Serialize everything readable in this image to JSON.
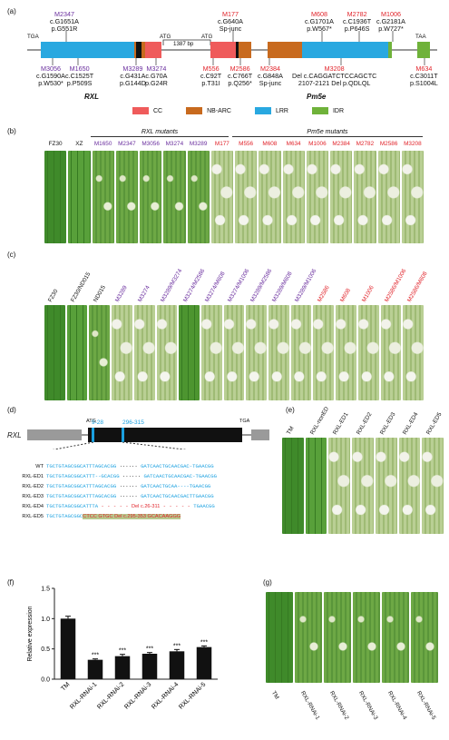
{
  "panels": {
    "a": "(a)",
    "b": "(b)",
    "c": "(c)",
    "d": "(d)",
    "e": "(e)",
    "f": "(f)",
    "g": "(g)"
  },
  "panel_a": {
    "gene_left": "RXL",
    "gene_right": "Pm5e",
    "tga_left": "TGA",
    "atg_mid1": "ATG",
    "gap": "1387 bp",
    "atg_mid2": "ATG",
    "taa_right": "TAA",
    "top_mutations": [
      {
        "id": "M2347",
        "c": "c.G1651A",
        "p": "p.G551R",
        "color": "purple"
      },
      {
        "id": "M177",
        "c": "c.G640A",
        "p": "Sp-junc",
        "color": "red"
      },
      {
        "id": "M608",
        "c": "c.G1701A",
        "p": "p.W567*",
        "color": "red"
      },
      {
        "id": "M2782",
        "c": "c.C1936T",
        "p": "p.P646S",
        "color": "red"
      },
      {
        "id": "M1006",
        "c": "c.G2181A",
        "p": "p.W727*",
        "color": "red"
      }
    ],
    "bottom_mutations": [
      {
        "id": "M3056",
        "c": "c.G1590A",
        "p": "p.W530*",
        "color": "purple"
      },
      {
        "id": "M1650",
        "c": "c.C1525T",
        "p": "p.P509S",
        "color": "purple"
      },
      {
        "id": "M3289",
        "c": "c.G431A",
        "p": "p.G144D",
        "color": "purple"
      },
      {
        "id": "M3274",
        "c": "c.G70A",
        "p": "p.G24R",
        "color": "purple"
      },
      {
        "id": "M556",
        "c": "c.C92T",
        "p": "p.T31I",
        "color": "red"
      },
      {
        "id": "M2586",
        "c": "c.C766T",
        "p": "p.Q256*",
        "color": "red"
      },
      {
        "id": "M2384",
        "c": "c.G848A",
        "p": "Sp-junc",
        "color": "red"
      },
      {
        "id": "M3208",
        "c": "Del c.CAGGATCTCCAGCTC",
        "p": "2107-2121    Del p.QDLQL",
        "color": "red"
      },
      {
        "id": "M634",
        "c": "c.C3011T",
        "p": "p.S1004L",
        "color": "red"
      }
    ],
    "legend": [
      {
        "label": "CC",
        "color": "#ef5b5b"
      },
      {
        "label": "NB-ARC",
        "color": "#c86a1e"
      },
      {
        "label": "LRR",
        "color": "#29a8e0"
      },
      {
        "label": "IDR",
        "color": "#6fb23a"
      }
    ]
  },
  "panel_b": {
    "rxl_header": "RXL mutants",
    "pm5e_header": "Pm5e mutants",
    "labels": [
      {
        "t": "FZ30",
        "c": "dark"
      },
      {
        "t": "XZ",
        "c": "dark"
      },
      {
        "t": "M1650",
        "c": "purple"
      },
      {
        "t": "M2347",
        "c": "purple"
      },
      {
        "t": "M3056",
        "c": "purple"
      },
      {
        "t": "M3274",
        "c": "purple"
      },
      {
        "t": "M3289",
        "c": "purple"
      },
      {
        "t": "M177",
        "c": "red"
      },
      {
        "t": "M556",
        "c": "red"
      },
      {
        "t": "M608",
        "c": "red"
      },
      {
        "t": "M634",
        "c": "red"
      },
      {
        "t": "M1006",
        "c": "red"
      },
      {
        "t": "M2384",
        "c": "red"
      },
      {
        "t": "M2782",
        "c": "red"
      },
      {
        "t": "M2586",
        "c": "red"
      },
      {
        "t": "M3208",
        "c": "red"
      }
    ]
  },
  "panel_c": {
    "labels": [
      {
        "t": "FZ30",
        "c": "dark"
      },
      {
        "t": "FZ30/ND015",
        "c": "dark"
      },
      {
        "t": "ND015",
        "c": "dark"
      },
      {
        "t": "M3289",
        "c": "purple"
      },
      {
        "t": "M3274",
        "c": "purple"
      },
      {
        "t": "M3289/M3274",
        "c": "purple"
      },
      {
        "t": "M3274/M2586",
        "c": "purple"
      },
      {
        "t": "M3274/M608",
        "c": "purple"
      },
      {
        "t": "M3274/M1006",
        "c": "purple"
      },
      {
        "t": "M3289/M2586",
        "c": "purple"
      },
      {
        "t": "M3289/M608",
        "c": "purple"
      },
      {
        "t": "M3289/M1006",
        "c": "purple"
      },
      {
        "t": "M2586",
        "c": "red"
      },
      {
        "t": "M608",
        "c": "red"
      },
      {
        "t": "M1006",
        "c": "red"
      },
      {
        "t": "M2586/M1006",
        "c": "red"
      },
      {
        "t": "M2586/M608",
        "c": "red"
      }
    ]
  },
  "panel_d": {
    "gene": "RXL",
    "atg": "ATG",
    "tga": "TGA",
    "site1": "9-28",
    "site2": "296-315",
    "rows": [
      {
        "name": "WT",
        "left": "TGCTGTAGCGGCATTTAGCACGG",
        "right": "GATCAACTGCAACGAC-TGAACGG"
      },
      {
        "name": "RXL-ED1",
        "left": "TGCTGTAGCGGCATTT--GCACGG",
        "right": "GATCAACTGCAACGAC-TGAACGG"
      },
      {
        "name": "RXL-ED2",
        "left": "TGCTGTAGCGGCATTTAGCACGG",
        "right": "GATCAACTGCAA----TGAACGG"
      },
      {
        "name": "RXL-ED3",
        "left": "TGCTGTAGCGGCATTTAGCACGG",
        "right": "GATCAACTGCAACGACTTGAACGG"
      },
      {
        "name": "RXL-ED4",
        "left": "TGCTGTAGCGGCATTTA",
        "mid": "Del c.26-311",
        "right": "TGAACGG"
      },
      {
        "name": "RXL-ED5",
        "left": "TGCTGTAGCGGC",
        "mid": "CTCC  GTGC  Del c.295-353 GCACAAGGG",
        "right": ""
      }
    ]
  },
  "panel_e": {
    "labels": [
      "TM",
      "RXL-nonED",
      "RXL-ED1",
      "RXL-ED2",
      "RXL-ED3",
      "RXL-ED4",
      "RXL-ED5"
    ]
  },
  "panel_f": {
    "chart_data": {
      "type": "bar",
      "categories": [
        "TM",
        "RXL-RNAi-1",
        "RXL-RNAi-2",
        "RXL-RNAi-3",
        "RXL-RNAi-4",
        "RXL-RNAi-5"
      ],
      "values": [
        1.0,
        0.32,
        0.38,
        0.42,
        0.46,
        0.53
      ],
      "errors": [
        0.04,
        0.015,
        0.03,
        0.02,
        0.03,
        0.02
      ],
      "significance": [
        "",
        "***",
        "***",
        "***",
        "***",
        "***"
      ],
      "ylabel": "Relative expression",
      "ylim": [
        0,
        1.5
      ],
      "yticks": [
        "0.0",
        "0.5",
        "1.0",
        "1.5"
      ]
    }
  },
  "panel_g": {
    "labels": [
      "TM",
      "RXL-RNAi-1",
      "RXL-RNAi-2",
      "RXL-RNAi-3",
      "RXL-RNAi-4",
      "RXL-RNAi-5"
    ]
  }
}
